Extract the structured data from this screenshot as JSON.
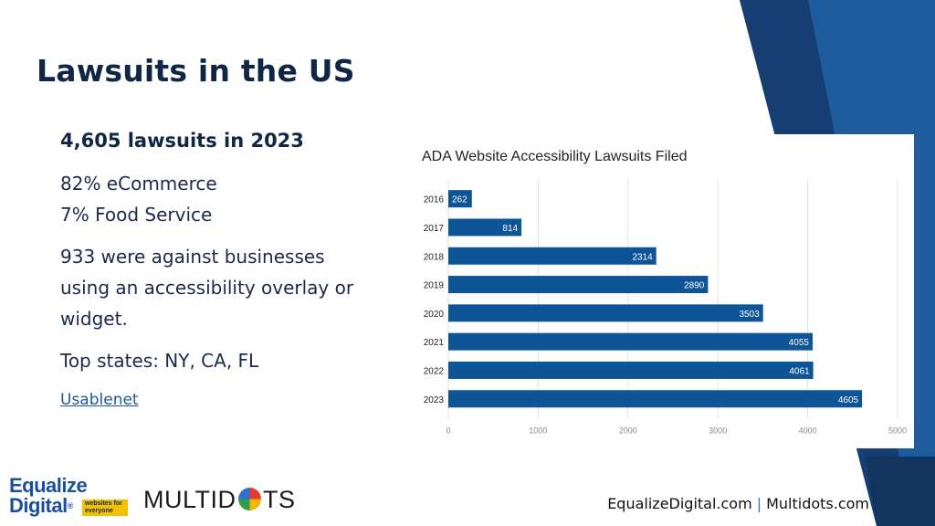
{
  "slide": {
    "title": "Lawsuits in the US",
    "headline": "4,605 lawsuits in 2023",
    "industry_lines": [
      "82% eCommerce",
      "7% Food Service"
    ],
    "overlay_lines": [
      "933 were against businesses",
      "using an accessibility overlay or",
      "widget."
    ],
    "states_line": "Top states: NY, CA, FL",
    "source_link": "Usablenet"
  },
  "footer": {
    "site1": "EqualizeDigital.com",
    "separator": "|",
    "site2": "Multidots.com"
  },
  "logos": {
    "equalize_line1": "Equalize",
    "equalize_line2": "Digital",
    "equalize_reg": "®",
    "equalize_tagline": "websites for everyone",
    "multidots_left": "MULTID",
    "multidots_right": "TS"
  },
  "colors": {
    "navy": "#0f2744",
    "accent_dark": "#163e73",
    "accent_mid": "#1e5c9e",
    "bar": "#0e5597",
    "grid": "#e0e0e0"
  },
  "chart_data": {
    "type": "bar",
    "orientation": "horizontal",
    "title": "ADA Website Accessibility Lawsuits Filed",
    "categories": [
      "2016",
      "2017",
      "2018",
      "2019",
      "2020",
      "2021",
      "2022",
      "2023"
    ],
    "values": [
      262,
      814,
      2314,
      2890,
      3503,
      4055,
      4061,
      4605
    ],
    "xlim": [
      0,
      5000
    ],
    "xticks": [
      0,
      1000,
      2000,
      3000,
      4000,
      5000
    ],
    "grid": true,
    "legend": "none"
  }
}
